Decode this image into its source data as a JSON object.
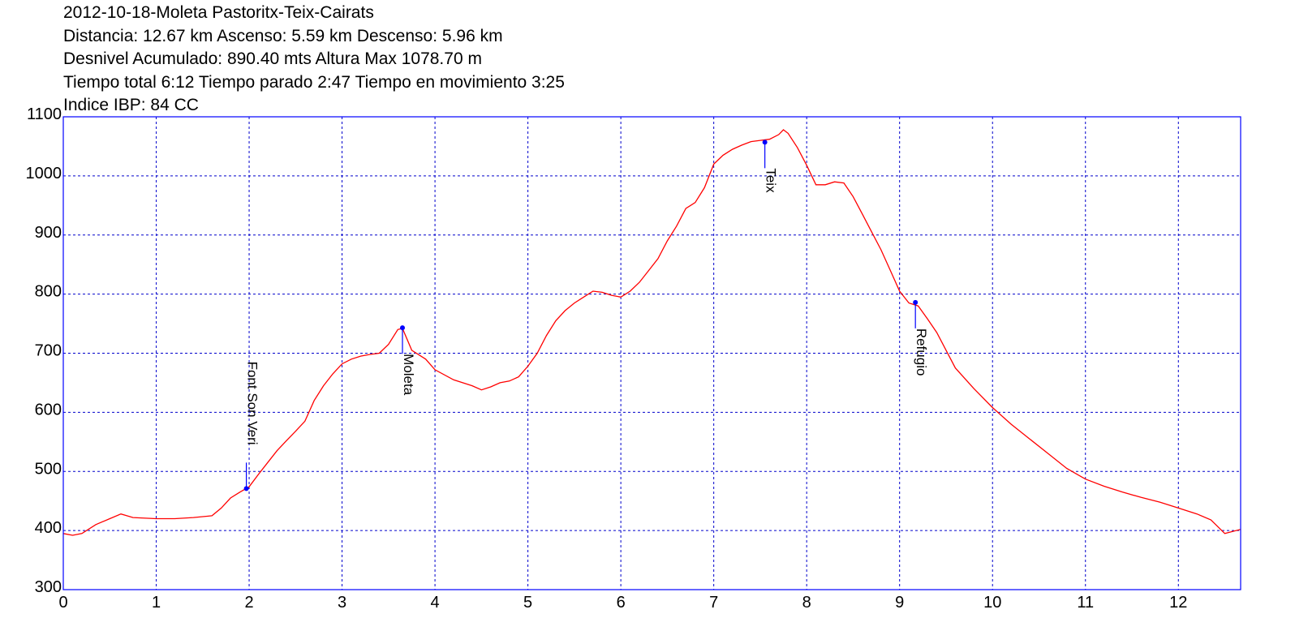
{
  "header": {
    "lines": [
      "2012-10-18-Moleta Pastoritx-Teix-Cairats",
      "Distancia: 12.67 km Ascenso: 5.59 km Descenso: 5.96 km",
      "Desnivel Acumulado: 890.40 mts  Altura Max 1078.70 m",
      "Tiempo total 6:12 Tiempo parado 2:47 Tiempo en movimiento 3:25",
      "Indice IBP: 84 CC"
    ]
  },
  "colors": {
    "profile_line": "#ff0000",
    "frame": "#0000ff",
    "grid": "#0000cc",
    "waypoint": "#0000ff"
  },
  "chart_data": {
    "type": "line",
    "title": "2012-10-18-Moleta Pastoritx-Teix-Cairats",
    "xlabel": "",
    "ylabel": "",
    "xlim": [
      0,
      12.67
    ],
    "ylim": [
      300,
      1100
    ],
    "xticks": [
      0,
      1,
      2,
      3,
      4,
      5,
      6,
      7,
      8,
      9,
      10,
      11,
      12
    ],
    "yticks": [
      300,
      400,
      500,
      600,
      700,
      800,
      900,
      1000,
      1100
    ],
    "grid": true,
    "series": [
      {
        "x": [
          0,
          0.1,
          0.2,
          0.35,
          0.5,
          0.62,
          0.75,
          1.0,
          1.2,
          1.4,
          1.6,
          1.7,
          1.8,
          1.9,
          2.0,
          2.1,
          2.2,
          2.3,
          2.4,
          2.5,
          2.6,
          2.7,
          2.8,
          2.9,
          3.0,
          3.1,
          3.2,
          3.3,
          3.4,
          3.5,
          3.6,
          3.65,
          3.75,
          3.9,
          4.0,
          4.2,
          4.4,
          4.5,
          4.6,
          4.7,
          4.8,
          4.9,
          5.0,
          5.1,
          5.2,
          5.3,
          5.4,
          5.5,
          5.6,
          5.7,
          5.8,
          5.9,
          6.0,
          6.1,
          6.2,
          6.3,
          6.4,
          6.5,
          6.6,
          6.7,
          6.8,
          6.9,
          7.0,
          7.1,
          7.2,
          7.3,
          7.4,
          7.5,
          7.6,
          7.7,
          7.75,
          7.8,
          7.9,
          8.0,
          8.1,
          8.2,
          8.3,
          8.4,
          8.5,
          8.6,
          8.7,
          8.8,
          8.9,
          9.0,
          9.1,
          9.2,
          9.3,
          9.4,
          9.5,
          9.6,
          9.8,
          10.0,
          10.2,
          10.4,
          10.6,
          10.8,
          11.0,
          11.2,
          11.4,
          11.6,
          11.8,
          12.0,
          12.2,
          12.35,
          12.5,
          12.67
        ],
        "y": [
          395,
          392,
          395,
          410,
          420,
          428,
          422,
          420,
          420,
          422,
          425,
          438,
          455,
          465,
          474,
          495,
          515,
          535,
          552,
          568,
          585,
          620,
          645,
          665,
          682,
          690,
          695,
          698,
          700,
          715,
          740,
          742,
          705,
          690,
          672,
          655,
          645,
          638,
          643,
          650,
          653,
          660,
          678,
          700,
          730,
          755,
          772,
          785,
          795,
          805,
          803,
          798,
          795,
          805,
          820,
          840,
          860,
          890,
          915,
          945,
          955,
          980,
          1020,
          1035,
          1045,
          1052,
          1058,
          1060,
          1062,
          1070,
          1078,
          1072,
          1048,
          1018,
          985,
          985,
          990,
          988,
          965,
          935,
          905,
          875,
          840,
          805,
          785,
          780,
          758,
          735,
          705,
          675,
          640,
          608,
          580,
          555,
          530,
          505,
          487,
          475,
          465,
          456,
          448,
          438,
          428,
          418,
          395,
          402
        ]
      }
    ],
    "waypoints": [
      {
        "label": "Font Son Veri",
        "x": 1.97,
        "y": 471
      },
      {
        "label": "Moleta",
        "x": 3.65,
        "y": 743
      },
      {
        "label": "Teix",
        "x": 7.55,
        "y": 1057
      },
      {
        "label": "Refugio",
        "x": 9.17,
        "y": 786
      }
    ]
  }
}
